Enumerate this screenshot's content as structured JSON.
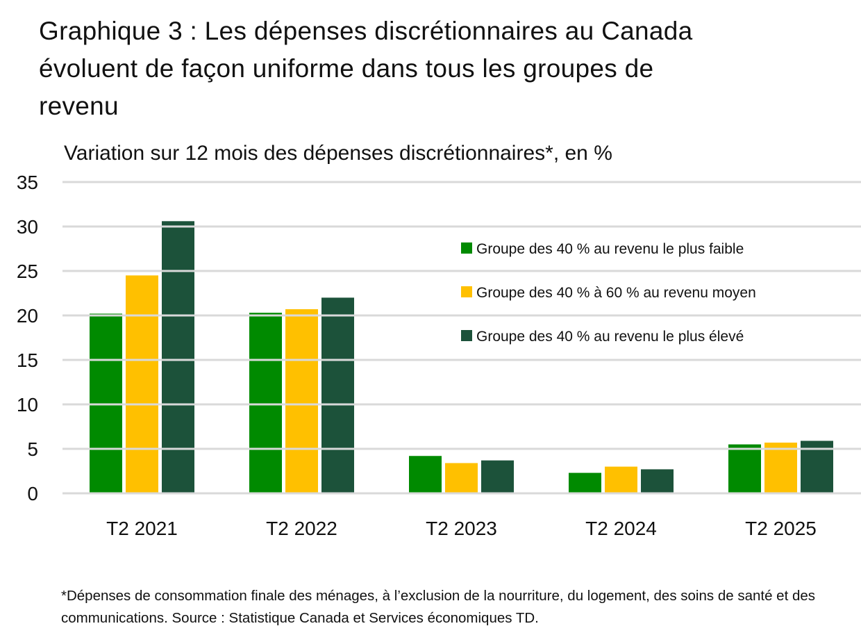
{
  "chart_data": {
    "type": "bar",
    "title": "Graphique 3 : Les dépenses discrétionnaires au Canada évoluent de façon uniforme dans tous les groupes de revenu",
    "subtitle": "Variation sur 12 mois des dépenses discrétionnaires*, en %",
    "categories": [
      "T2 2021",
      "T2 2022",
      "T2 2023",
      "T2 2024",
      "T2 2025"
    ],
    "series": [
      {
        "name": "Groupe des 40 % au revenu le plus faible",
        "color": "#008a00",
        "values": [
          20.2,
          20.3,
          4.2,
          2.3,
          5.5
        ]
      },
      {
        "name": "Groupe des 40 % à 60 % au revenu moyen",
        "color": "#ffc000",
        "values": [
          24.5,
          20.7,
          3.4,
          3.0,
          5.7
        ]
      },
      {
        "name": "Groupe des 40 % au revenu le plus élevé",
        "color": "#1c523a",
        "values": [
          30.6,
          22.0,
          3.7,
          2.7,
          5.9
        ]
      }
    ],
    "ylim": [
      0,
      35
    ],
    "yticks": [
      0,
      5,
      10,
      15,
      20,
      25,
      30,
      35
    ],
    "grid": true,
    "gridColor": "#d9d9d9",
    "legend": "right"
  },
  "footnote": "*Dépenses de consommation finale des ménages, à l’exclusion de la nourriture, du logement, des soins de santé et des communications. Source : Statistique Canada et Services économiques TD."
}
